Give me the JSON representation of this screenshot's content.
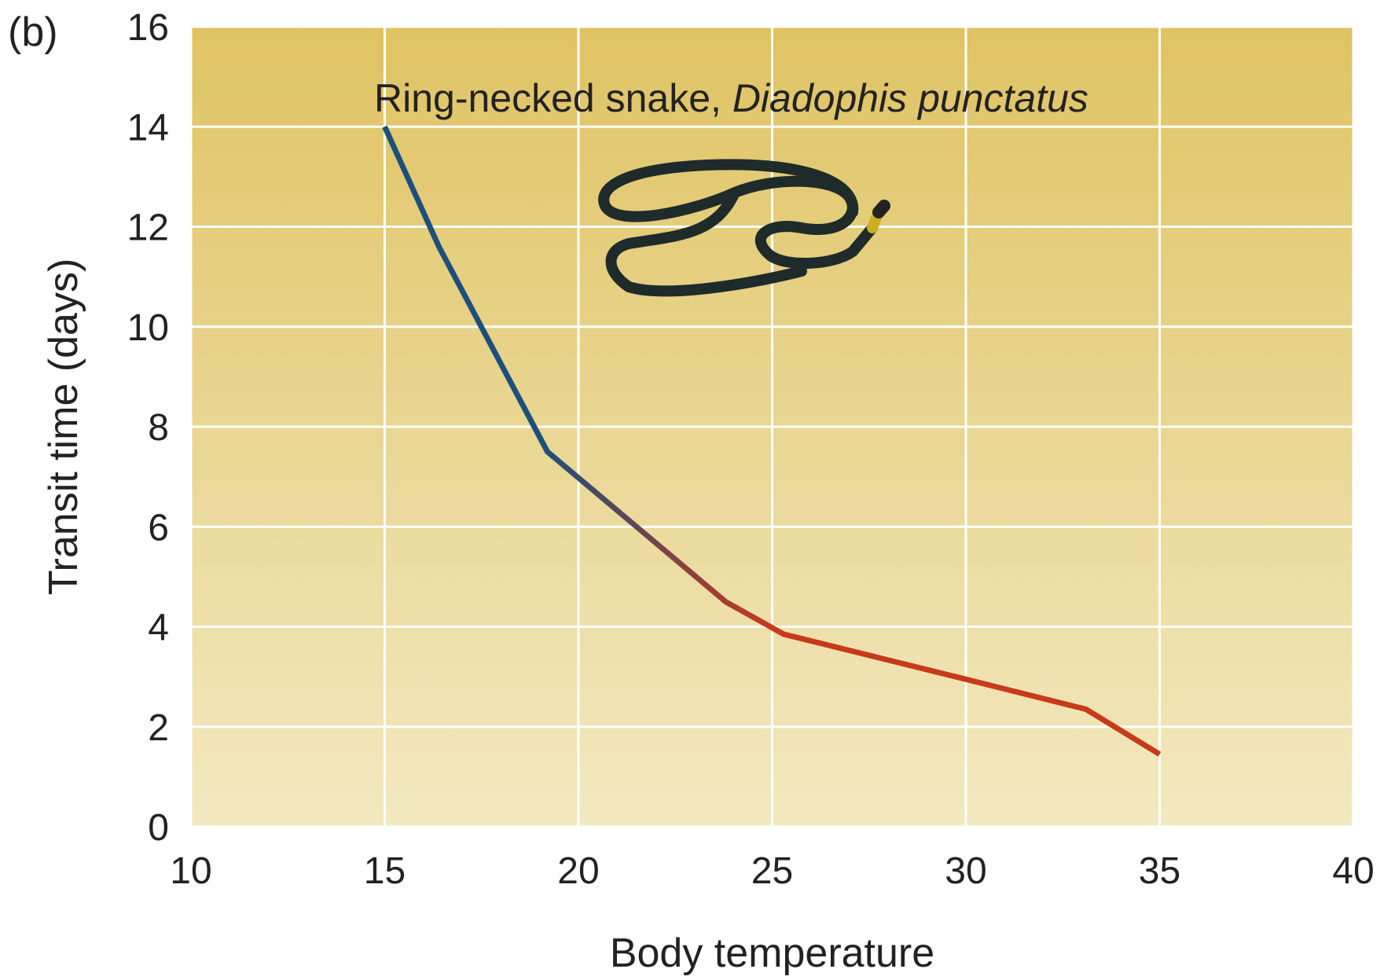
{
  "chart_data": {
    "type": "line",
    "panel_label": "(b)",
    "annotation": {
      "text": "Ring-necked snake, ",
      "species": "Diadophis punctatus"
    },
    "x_label": "Body temperature",
    "y_label": "Transit time (days)",
    "xlim": [
      10,
      40
    ],
    "xticks": [
      10,
      15,
      20,
      25,
      30,
      35,
      40
    ],
    "ylim": [
      0,
      16
    ],
    "yticks": [
      0,
      2,
      4,
      6,
      8,
      10,
      12,
      14,
      16
    ],
    "grid": true,
    "series": [
      {
        "colors": [
          "#1c4f7d",
          "#c73a1a"
        ],
        "x": [
          15,
          16.4,
          19.2,
          21.5,
          23.8,
          25.3,
          30,
          33.1,
          35
        ],
        "values": [
          14,
          11.6,
          7.5,
          6.0,
          4.5,
          3.85,
          2.95,
          2.35,
          1.45
        ]
      }
    ]
  }
}
